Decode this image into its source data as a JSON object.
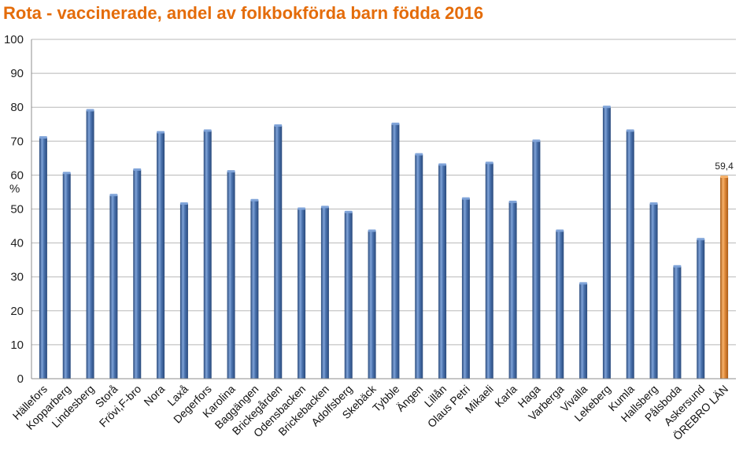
{
  "chart_data": {
    "type": "bar",
    "title": "Rota - vaccinerade, andel av folkbokförda barn födda 2016",
    "ylabel": "%",
    "xlabel": "",
    "ylim": [
      0,
      100
    ],
    "yticks": [
      0,
      10,
      20,
      30,
      40,
      50,
      60,
      70,
      80,
      90,
      100
    ],
    "grid": true,
    "categories": [
      "Hällefors",
      "Kopparberg",
      "Lindesberg",
      "Storå",
      "Frövi,F-bro",
      "Nora",
      "Laxå",
      "Degerfors",
      "Karolina",
      "Baggängen",
      "Brickegården",
      "Odensbacken",
      "Brickebacken",
      "Adolfsberg",
      "Skebäck",
      "Tybble",
      "Ängen",
      "Lillån",
      "Olaus Petri",
      "Mikaeli",
      "Karla",
      "Haga",
      "Varberga",
      "Vivalla",
      "Lekeberg",
      "Kumla",
      "Hallsberg",
      "Pålsboda",
      "Askersund",
      "ÖREBRO LÄN"
    ],
    "values": [
      71,
      60.5,
      79,
      54,
      61.5,
      72.5,
      51.5,
      73,
      61,
      52.5,
      74.5,
      50,
      50.5,
      49,
      43.5,
      75,
      66,
      63,
      53,
      63.5,
      52,
      70,
      43.5,
      28,
      80,
      73,
      51.5,
      33,
      41,
      59.4
    ],
    "highlight_index": 29,
    "data_labels": [
      {
        "index": 29,
        "text": "59,4"
      }
    ],
    "colors": {
      "bar": "#4a72ad",
      "bar_dark": "#2a4a7c",
      "bar_light": "#7fa3d8",
      "highlight": "#e0893a",
      "highlight_dark": "#a85a16",
      "highlight_light": "#f6b26b",
      "grid": "#b8b8b8",
      "title": "#e46c0a"
    }
  }
}
